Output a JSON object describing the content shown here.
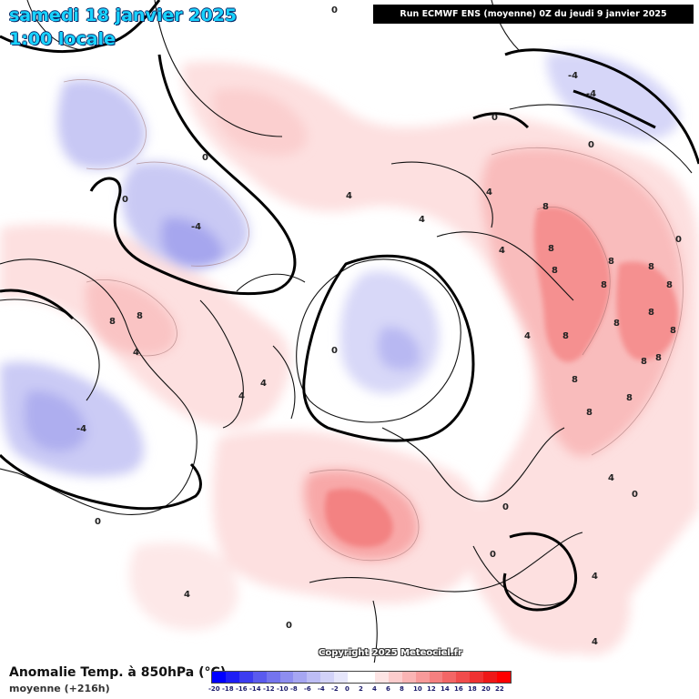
{
  "header": {
    "date": "samedi 18 janvier 2025",
    "time": "1:00 locale",
    "run": "Run ECMWF ENS (moyenne) 0Z du jeudi 9 janvier 2025"
  },
  "footer": {
    "variable": "Anomalie Temp. à 850hPa (°C)",
    "subtitle": "moyenne  (+216h)",
    "copyright": "Copyright 2025 Meteociel.fr"
  },
  "legend": {
    "values": [
      "-20",
      "-18",
      "-16",
      "-14",
      "-12",
      "-10",
      "-8",
      "-6",
      "-4",
      "-2",
      "0",
      "2",
      "4",
      "6",
      "8",
      "10",
      "12",
      "14",
      "16",
      "18",
      "20",
      "22"
    ],
    "colors": [
      "#0000ff",
      "#1e1ef5",
      "#3c3cf0",
      "#5a5aee",
      "#7474ee",
      "#8e8ef0",
      "#a6a6f2",
      "#bdbdf5",
      "#d2d2f8",
      "#e6e6fb",
      "#ffffff",
      "#ffffff",
      "#fde4e4",
      "#fccccc",
      "#fab4b4",
      "#f89a9a",
      "#f58080",
      "#f36666",
      "#f14c4c",
      "#ef3232",
      "#ee1818",
      "#ff0000"
    ]
  },
  "contour_labels": [
    "0",
    "0",
    "0",
    "0",
    "0",
    "0",
    "0",
    "0",
    "0",
    "0",
    "0",
    "0",
    "-4",
    "-4",
    "-4",
    "-4",
    "4",
    "4",
    "4",
    "4",
    "4",
    "4",
    "4",
    "4",
    "4",
    "4",
    "4",
    "4",
    "8",
    "8",
    "8",
    "8",
    "8",
    "8",
    "8",
    "8",
    "8",
    "8",
    "8",
    "8",
    "8",
    "8",
    "8",
    "8",
    "8",
    "8"
  ]
}
